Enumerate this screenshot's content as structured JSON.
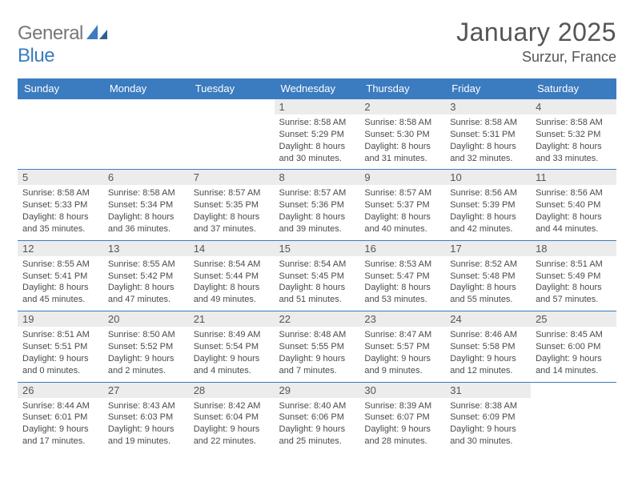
{
  "brand": {
    "general": "General",
    "blue": "Blue"
  },
  "title": "January 2025",
  "location": "Surzur, France",
  "colors": {
    "header_bg": "#3b7bbf",
    "header_text": "#ffffff",
    "daynum_bg": "#ececec",
    "border": "#3b7bbf",
    "text": "#4a4a4a",
    "page_bg": "#ffffff"
  },
  "dayHeaders": [
    "Sunday",
    "Monday",
    "Tuesday",
    "Wednesday",
    "Thursday",
    "Friday",
    "Saturday"
  ],
  "weeks": [
    [
      null,
      null,
      null,
      {
        "n": "1",
        "sr": "8:58 AM",
        "ss": "5:29 PM",
        "dlh": "8",
        "dlm": "30"
      },
      {
        "n": "2",
        "sr": "8:58 AM",
        "ss": "5:30 PM",
        "dlh": "8",
        "dlm": "31"
      },
      {
        "n": "3",
        "sr": "8:58 AM",
        "ss": "5:31 PM",
        "dlh": "8",
        "dlm": "32"
      },
      {
        "n": "4",
        "sr": "8:58 AM",
        "ss": "5:32 PM",
        "dlh": "8",
        "dlm": "33"
      }
    ],
    [
      {
        "n": "5",
        "sr": "8:58 AM",
        "ss": "5:33 PM",
        "dlh": "8",
        "dlm": "35"
      },
      {
        "n": "6",
        "sr": "8:58 AM",
        "ss": "5:34 PM",
        "dlh": "8",
        "dlm": "36"
      },
      {
        "n": "7",
        "sr": "8:57 AM",
        "ss": "5:35 PM",
        "dlh": "8",
        "dlm": "37"
      },
      {
        "n": "8",
        "sr": "8:57 AM",
        "ss": "5:36 PM",
        "dlh": "8",
        "dlm": "39"
      },
      {
        "n": "9",
        "sr": "8:57 AM",
        "ss": "5:37 PM",
        "dlh": "8",
        "dlm": "40"
      },
      {
        "n": "10",
        "sr": "8:56 AM",
        "ss": "5:39 PM",
        "dlh": "8",
        "dlm": "42"
      },
      {
        "n": "11",
        "sr": "8:56 AM",
        "ss": "5:40 PM",
        "dlh": "8",
        "dlm": "44"
      }
    ],
    [
      {
        "n": "12",
        "sr": "8:55 AM",
        "ss": "5:41 PM",
        "dlh": "8",
        "dlm": "45"
      },
      {
        "n": "13",
        "sr": "8:55 AM",
        "ss": "5:42 PM",
        "dlh": "8",
        "dlm": "47"
      },
      {
        "n": "14",
        "sr": "8:54 AM",
        "ss": "5:44 PM",
        "dlh": "8",
        "dlm": "49"
      },
      {
        "n": "15",
        "sr": "8:54 AM",
        "ss": "5:45 PM",
        "dlh": "8",
        "dlm": "51"
      },
      {
        "n": "16",
        "sr": "8:53 AM",
        "ss": "5:47 PM",
        "dlh": "8",
        "dlm": "53"
      },
      {
        "n": "17",
        "sr": "8:52 AM",
        "ss": "5:48 PM",
        "dlh": "8",
        "dlm": "55"
      },
      {
        "n": "18",
        "sr": "8:51 AM",
        "ss": "5:49 PM",
        "dlh": "8",
        "dlm": "57"
      }
    ],
    [
      {
        "n": "19",
        "sr": "8:51 AM",
        "ss": "5:51 PM",
        "dlh": "9",
        "dlm": "0"
      },
      {
        "n": "20",
        "sr": "8:50 AM",
        "ss": "5:52 PM",
        "dlh": "9",
        "dlm": "2"
      },
      {
        "n": "21",
        "sr": "8:49 AM",
        "ss": "5:54 PM",
        "dlh": "9",
        "dlm": "4"
      },
      {
        "n": "22",
        "sr": "8:48 AM",
        "ss": "5:55 PM",
        "dlh": "9",
        "dlm": "7"
      },
      {
        "n": "23",
        "sr": "8:47 AM",
        "ss": "5:57 PM",
        "dlh": "9",
        "dlm": "9"
      },
      {
        "n": "24",
        "sr": "8:46 AM",
        "ss": "5:58 PM",
        "dlh": "9",
        "dlm": "12"
      },
      {
        "n": "25",
        "sr": "8:45 AM",
        "ss": "6:00 PM",
        "dlh": "9",
        "dlm": "14"
      }
    ],
    [
      {
        "n": "26",
        "sr": "8:44 AM",
        "ss": "6:01 PM",
        "dlh": "9",
        "dlm": "17"
      },
      {
        "n": "27",
        "sr": "8:43 AM",
        "ss": "6:03 PM",
        "dlh": "9",
        "dlm": "19"
      },
      {
        "n": "28",
        "sr": "8:42 AM",
        "ss": "6:04 PM",
        "dlh": "9",
        "dlm": "22"
      },
      {
        "n": "29",
        "sr": "8:40 AM",
        "ss": "6:06 PM",
        "dlh": "9",
        "dlm": "25"
      },
      {
        "n": "30",
        "sr": "8:39 AM",
        "ss": "6:07 PM",
        "dlh": "9",
        "dlm": "28"
      },
      {
        "n": "31",
        "sr": "8:38 AM",
        "ss": "6:09 PM",
        "dlh": "9",
        "dlm": "30"
      },
      null
    ]
  ],
  "labels": {
    "sunrise": "Sunrise:",
    "sunset": "Sunset:",
    "daylight": "Daylight:",
    "hours": "hours",
    "and": "and",
    "minutes": "minutes."
  }
}
